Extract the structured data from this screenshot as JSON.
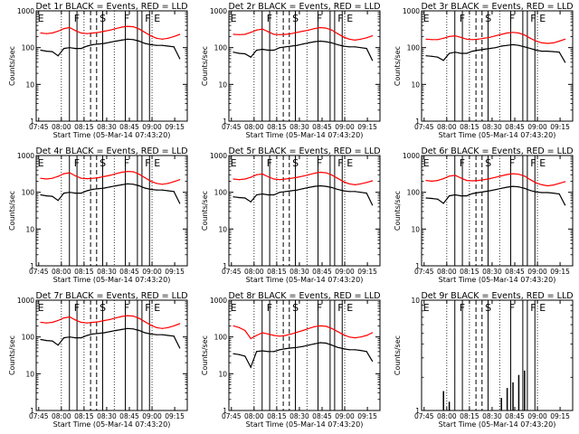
{
  "figure": {
    "colors": {
      "events": "#000000",
      "lld": "#ff0000",
      "frame": "#000000",
      "background": "#ffffff"
    }
  },
  "chart_data": [
    {
      "type": "line",
      "title": "Det 1r BLACK = Events, RED = LLD",
      "xlabel": "Start Time (05-Mar-14 07:43:20)",
      "ylabel": "Counts/sec",
      "yscale": "log",
      "ylim": [
        1,
        1000
      ],
      "yticks": [
        "1",
        "10",
        "100",
        "1000"
      ],
      "xticks": [
        "07:45",
        "08:00",
        "08:15",
        "08:30",
        "08:45",
        "09:00",
        "09:15"
      ],
      "markers": [
        "E",
        "F",
        "S",
        "F",
        "F",
        "E"
      ],
      "series": [
        {
          "name": "BLACK = Events",
          "color": "#000000",
          "values": [
            85,
            80,
            78,
            60,
            95,
            100,
            95,
            95,
            110,
            120,
            125,
            130,
            140,
            150,
            160,
            170,
            165,
            150,
            130,
            120,
            115,
            115,
            110,
            105,
            50
          ]
        },
        {
          "name": "RED = LLD",
          "color": "#ff0000",
          "values": [
            250,
            240,
            250,
            280,
            330,
            350,
            290,
            250,
            240,
            250,
            260,
            280,
            300,
            330,
            360,
            380,
            370,
            320,
            260,
            210,
            180,
            170,
            180,
            200,
            230
          ]
        }
      ]
    },
    {
      "type": "line",
      "title": "Det 2r BLACK = Events, RED = LLD",
      "xlabel": "Start Time (05-Mar-14 07:43:20)",
      "ylabel": "Counts/sec",
      "yscale": "log",
      "ylim": [
        1,
        1000
      ],
      "yticks": [
        "1",
        "10",
        "100",
        "1000"
      ],
      "xticks": [
        "07:45",
        "08:00",
        "08:15",
        "08:30",
        "08:45",
        "09:00",
        "09:15"
      ],
      "markers": [
        "E",
        "F",
        "S",
        "F",
        "F",
        "E"
      ],
      "series": [
        {
          "name": "BLACK = Events",
          "color": "#000000",
          "values": [
            75,
            70,
            68,
            55,
            85,
            90,
            85,
            85,
            100,
            105,
            110,
            115,
            125,
            135,
            145,
            150,
            145,
            135,
            120,
            110,
            105,
            105,
            100,
            95,
            45
          ]
        },
        {
          "name": "RED = LLD",
          "color": "#ff0000",
          "values": [
            230,
            225,
            230,
            260,
            300,
            320,
            270,
            230,
            225,
            230,
            240,
            260,
            280,
            300,
            330,
            350,
            340,
            300,
            240,
            195,
            170,
            160,
            170,
            185,
            210
          ]
        }
      ]
    },
    {
      "type": "line",
      "title": "Det 3r BLACK = Events, RED = LLD",
      "xlabel": "Start Time (05-Mar-14 07:43:20)",
      "ylabel": "Counts/sec",
      "yscale": "log",
      "ylim": [
        1,
        1000
      ],
      "yticks": [
        "1",
        "10",
        "100",
        "1000"
      ],
      "xticks": [
        "07:45",
        "08:00",
        "08:15",
        "08:30",
        "08:45",
        "09:00",
        "09:15"
      ],
      "markers": [
        "E",
        "F",
        "S",
        "F",
        "F",
        "E"
      ],
      "series": [
        {
          "name": "BLACK = Events",
          "color": "#000000",
          "values": [
            60,
            58,
            55,
            45,
            70,
            75,
            70,
            70,
            80,
            85,
            90,
            95,
            100,
            110,
            115,
            120,
            115,
            105,
            95,
            85,
            80,
            80,
            78,
            75,
            40
          ]
        },
        {
          "name": "RED = LLD",
          "color": "#ff0000",
          "values": [
            170,
            165,
            165,
            180,
            200,
            210,
            190,
            170,
            165,
            170,
            180,
            190,
            210,
            230,
            250,
            260,
            250,
            220,
            180,
            150,
            135,
            130,
            135,
            150,
            170
          ]
        }
      ]
    },
    {
      "type": "line",
      "title": "Det 4r BLACK = Events, RED = LLD",
      "xlabel": "Start Time (05-Mar-14 07:43:20)",
      "ylabel": "Counts/sec",
      "yscale": "log",
      "ylim": [
        1,
        1000
      ],
      "yticks": [
        "1",
        "10",
        "100",
        "1000"
      ],
      "xticks": [
        "07:45",
        "08:00",
        "08:15",
        "08:30",
        "08:45",
        "09:00",
        "09:15"
      ],
      "markers": [
        "E",
        "F",
        "S",
        "F",
        "F",
        "E"
      ],
      "series": [
        {
          "name": "BLACK = Events",
          "color": "#000000",
          "values": [
            85,
            80,
            78,
            60,
            95,
            100,
            95,
            95,
            110,
            120,
            125,
            130,
            140,
            150,
            160,
            170,
            165,
            150,
            130,
            120,
            115,
            115,
            110,
            105,
            50
          ]
        },
        {
          "name": "RED = LLD",
          "color": "#ff0000",
          "values": [
            240,
            230,
            240,
            270,
            320,
            340,
            280,
            240,
            235,
            240,
            250,
            270,
            290,
            320,
            350,
            370,
            360,
            310,
            250,
            200,
            175,
            165,
            175,
            195,
            220
          ]
        }
      ]
    },
    {
      "type": "line",
      "title": "Det 5r BLACK = Events, RED = LLD",
      "xlabel": "Start Time (05-Mar-14 07:43:20)",
      "ylabel": "Counts/sec",
      "yscale": "log",
      "ylim": [
        1,
        1000
      ],
      "yticks": [
        "1",
        "10",
        "100",
        "1000"
      ],
      "xticks": [
        "07:45",
        "08:00",
        "08:15",
        "08:30",
        "08:45",
        "09:00",
        "09:15"
      ],
      "markers": [
        "E",
        "F",
        "S",
        "F",
        "F",
        "E"
      ],
      "series": [
        {
          "name": "BLACK = Events",
          "color": "#000000",
          "values": [
            75,
            72,
            70,
            55,
            85,
            90,
            85,
            85,
            100,
            105,
            110,
            115,
            125,
            135,
            145,
            150,
            145,
            135,
            120,
            110,
            105,
            105,
            100,
            95,
            45
          ]
        },
        {
          "name": "RED = LLD",
          "color": "#ff0000",
          "values": [
            230,
            220,
            230,
            255,
            300,
            315,
            265,
            230,
            220,
            230,
            240,
            255,
            275,
            300,
            330,
            350,
            340,
            295,
            240,
            195,
            170,
            160,
            170,
            185,
            205
          ]
        }
      ]
    },
    {
      "type": "line",
      "title": "Det 6r BLACK = Events, RED = LLD",
      "xlabel": "Start Time (05-Mar-14 07:43:20)",
      "ylabel": "Counts/sec",
      "yscale": "log",
      "ylim": [
        1,
        1000
      ],
      "yticks": [
        "1",
        "10",
        "100",
        "1000"
      ],
      "xticks": [
        "07:45",
        "08:00",
        "08:15",
        "08:30",
        "08:45",
        "09:00",
        "09:15"
      ],
      "markers": [
        "E",
        "F",
        "S",
        "F",
        "F",
        "E"
      ],
      "series": [
        {
          "name": "BLACK = Events",
          "color": "#000000",
          "values": [
            70,
            68,
            65,
            50,
            80,
            85,
            80,
            80,
            92,
            98,
            104,
            110,
            118,
            128,
            138,
            145,
            140,
            128,
            112,
            102,
            98,
            98,
            95,
            90,
            45
          ]
        },
        {
          "name": "RED = LLD",
          "color": "#ff0000",
          "values": [
            210,
            200,
            210,
            235,
            275,
            290,
            245,
            210,
            205,
            210,
            220,
            235,
            255,
            280,
            305,
            320,
            310,
            275,
            220,
            180,
            160,
            150,
            158,
            175,
            195
          ]
        }
      ]
    },
    {
      "type": "line",
      "title": "Det 7r BLACK = Events, RED = LLD",
      "xlabel": "Start Time (05-Mar-14 07:43:20)",
      "ylabel": "Counts/sec",
      "yscale": "log",
      "ylim": [
        1,
        1000
      ],
      "yticks": [
        "1",
        "10",
        "100",
        "1000"
      ],
      "xticks": [
        "07:45",
        "08:00",
        "08:15",
        "08:30",
        "08:45",
        "09:00",
        "09:15"
      ],
      "markers": [
        "E",
        "F",
        "S",
        "F",
        "F",
        "E"
      ],
      "series": [
        {
          "name": "BLACK = Events",
          "color": "#000000",
          "values": [
            85,
            80,
            78,
            60,
            95,
            100,
            95,
            95,
            110,
            120,
            125,
            130,
            140,
            150,
            160,
            170,
            165,
            150,
            130,
            120,
            115,
            115,
            110,
            105,
            50
          ]
        },
        {
          "name": "RED = LLD",
          "color": "#ff0000",
          "values": [
            250,
            240,
            250,
            280,
            330,
            350,
            290,
            250,
            240,
            250,
            260,
            280,
            300,
            330,
            360,
            380,
            370,
            320,
            260,
            210,
            180,
            170,
            180,
            200,
            230
          ]
        }
      ]
    },
    {
      "type": "line",
      "title": "Det 8r BLACK = Events, RED = LLD",
      "xlabel": "Start Time (05-Mar-14 07:43:20)",
      "ylabel": "Counts/sec",
      "yscale": "log",
      "ylim": [
        1,
        1000
      ],
      "yticks": [
        "1",
        "10",
        "100",
        "1000"
      ],
      "xticks": [
        "07:45",
        "08:00",
        "08:15",
        "08:30",
        "08:45",
        "09:00",
        "09:15"
      ],
      "markers": [
        "E",
        "F",
        "S",
        "F",
        "F",
        "E"
      ],
      "series": [
        {
          "name": "BLACK = Events",
          "color": "#000000",
          "values": [
            35,
            33,
            30,
            15,
            40,
            42,
            40,
            40,
            45,
            48,
            50,
            52,
            55,
            60,
            65,
            70,
            68,
            60,
            52,
            48,
            45,
            45,
            43,
            40,
            22
          ]
        },
        {
          "name": "RED = LLD",
          "color": "#ff0000",
          "values": [
            200,
            180,
            150,
            90,
            110,
            130,
            120,
            110,
            105,
            110,
            120,
            135,
            150,
            170,
            190,
            200,
            195,
            170,
            140,
            115,
            100,
            95,
            100,
            110,
            130
          ]
        }
      ]
    },
    {
      "type": "bar",
      "title": "Det 9r BLACK = Events, RED = LLD",
      "xlabel": "Start Time (05-Mar-14 07:43:20)",
      "ylabel": "Counts/sec",
      "yscale": "log",
      "ylim": [
        1,
        10
      ],
      "yticks": [
        "1",
        "10"
      ],
      "xticks": [
        "07:45",
        "08:00",
        "08:15",
        "08:30",
        "08:45",
        "09:00",
        "09:15"
      ],
      "markers": [
        "E",
        "F",
        "S",
        "F",
        "F",
        "E"
      ],
      "series": [
        {
          "name": "BLACK = Events",
          "color": "#000000",
          "values": [
            0,
            0,
            0,
            1.5,
            1.2,
            0,
            0,
            0,
            0,
            0,
            0,
            0,
            0,
            1.3,
            1.6,
            1.8,
            2.1,
            2.3,
            0,
            0,
            0,
            0,
            0,
            0,
            0
          ]
        }
      ]
    }
  ]
}
